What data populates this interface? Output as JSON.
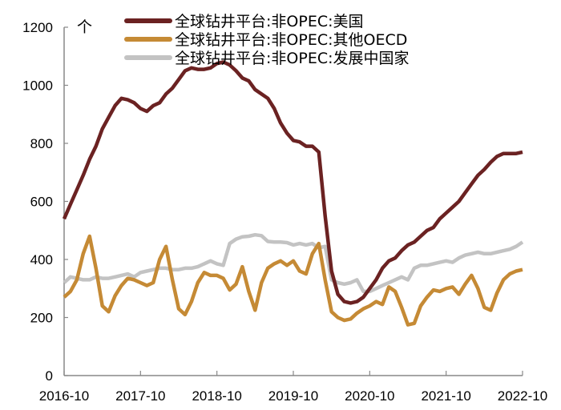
{
  "chart_data": {
    "type": "line",
    "unit_label": "个",
    "ylim": [
      0,
      1200
    ],
    "yticks": [
      0,
      200,
      400,
      600,
      800,
      1000,
      1200
    ],
    "xticks": [
      "2016-10",
      "2017-10",
      "2018-10",
      "2019-10",
      "2020-10",
      "2021-10",
      "2022-10"
    ],
    "x_start": "2016-10",
    "x_end": "2022-10",
    "frequency": "monthly",
    "grid": false,
    "legend": "top",
    "series": [
      {
        "name": "全球钻井平台:非OPEC:美国",
        "color": "#6b2222",
        "values": [
          540,
          590,
          640,
          690,
          745,
          790,
          850,
          890,
          930,
          955,
          950,
          940,
          920,
          910,
          930,
          940,
          970,
          990,
          1020,
          1050,
          1060,
          1055,
          1055,
          1060,
          1075,
          1080,
          1070,
          1050,
          1025,
          1015,
          985,
          970,
          955,
          920,
          870,
          835,
          810,
          805,
          790,
          790,
          770,
          550,
          360,
          280,
          255,
          250,
          255,
          270,
          300,
          330,
          370,
          395,
          405,
          430,
          450,
          460,
          480,
          500,
          510,
          540,
          560,
          580,
          600,
          630,
          660,
          690,
          710,
          735,
          755,
          765,
          765,
          765,
          770
        ]
      },
      {
        "name": "全球钻井平台:非OPEC:其他OECD",
        "color": "#c58a35",
        "values": [
          270,
          290,
          330,
          420,
          480,
          370,
          240,
          220,
          275,
          310,
          335,
          330,
          320,
          310,
          320,
          400,
          445,
          330,
          230,
          210,
          255,
          320,
          355,
          345,
          345,
          335,
          295,
          315,
          375,
          290,
          225,
          320,
          370,
          385,
          395,
          380,
          395,
          360,
          350,
          420,
          455,
          330,
          220,
          200,
          190,
          195,
          215,
          230,
          240,
          255,
          245,
          305,
          290,
          235,
          175,
          180,
          240,
          270,
          295,
          290,
          300,
          305,
          280,
          315,
          345,
          300,
          235,
          225,
          285,
          330,
          350,
          360,
          365
        ]
      },
      {
        "name": "全球钻井平台:非OPEC:发展中国家",
        "color": "#c3c3c3",
        "values": [
          320,
          340,
          335,
          330,
          330,
          340,
          335,
          335,
          340,
          345,
          350,
          340,
          355,
          360,
          365,
          370,
          370,
          365,
          365,
          370,
          370,
          375,
          385,
          395,
          385,
          380,
          455,
          470,
          478,
          480,
          485,
          482,
          462,
          460,
          460,
          458,
          450,
          455,
          450,
          455,
          440,
          445,
          330,
          320,
          315,
          320,
          330,
          290,
          290,
          300,
          310,
          320,
          330,
          340,
          330,
          370,
          380,
          380,
          385,
          390,
          395,
          390,
          405,
          415,
          420,
          425,
          420,
          420,
          425,
          430,
          435,
          445,
          460
        ]
      }
    ]
  }
}
